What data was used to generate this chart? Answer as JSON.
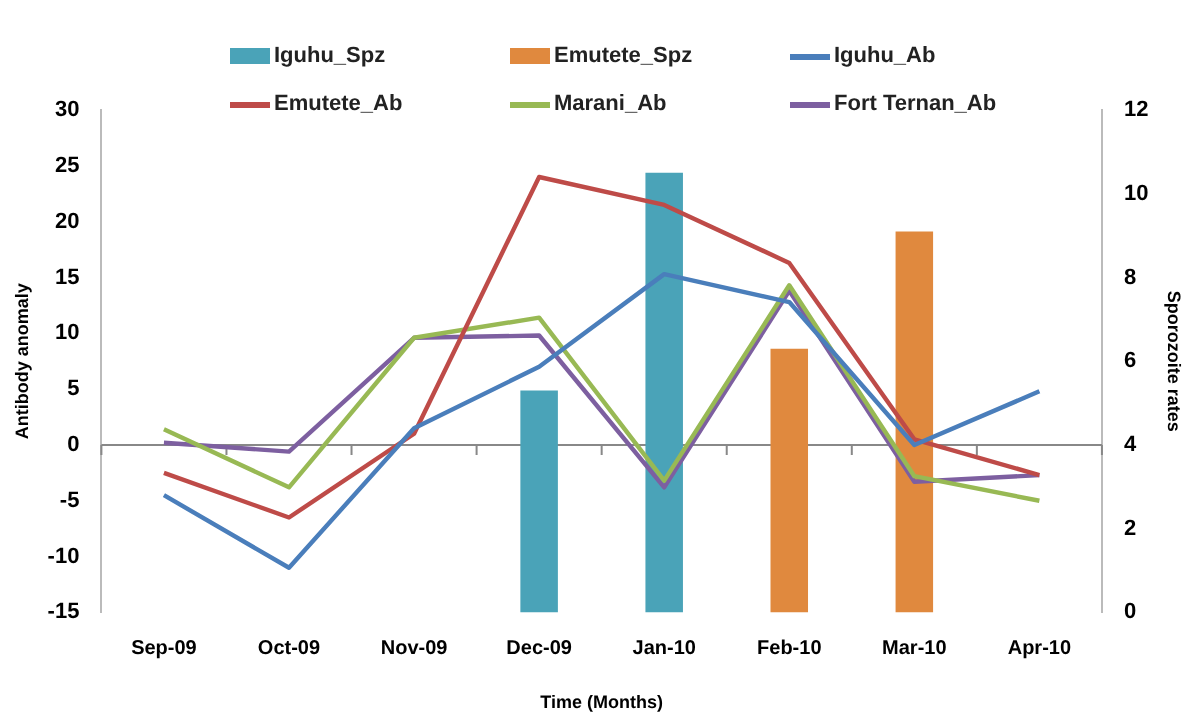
{
  "chart_data": {
    "type": "line",
    "xlabel": "Time (Months)",
    "ylabel": "Antibody anomaly",
    "y2label": "Sporozoite rates",
    "categories": [
      "Sep-09",
      "Oct-09",
      "Nov-09",
      "Dec-09",
      "Jan-10",
      "Feb-10",
      "Mar-10",
      "Apr-10"
    ],
    "series": [
      {
        "name": "Iguhu_Spz",
        "type": "bar",
        "axis": "y2",
        "color": "#4aa3b8",
        "values": [
          null,
          null,
          null,
          5.3,
          10.5,
          null,
          null,
          null
        ]
      },
      {
        "name": "Emutete_Spz",
        "type": "bar",
        "axis": "y2",
        "color": "#e0893e",
        "values": [
          null,
          null,
          null,
          null,
          null,
          6.3,
          9.1,
          null
        ]
      },
      {
        "name": "Iguhu_Ab",
        "color": "#4a7ebb",
        "values": [
          -4.5,
          -11,
          1.5,
          7,
          15.3,
          12.8,
          0,
          4.8
        ]
      },
      {
        "name": "Emutete_Ab",
        "color": "#be4b48",
        "values": [
          -2.5,
          -6.5,
          1,
          24,
          21.5,
          16.3,
          0.5,
          -2.7
        ]
      },
      {
        "name": "Marani_Ab",
        "color": "#98b954",
        "values": [
          1.4,
          -3.8,
          9.6,
          11.4,
          -3.2,
          14.3,
          -2.8,
          -5
        ]
      },
      {
        "name": "Fort Ternan_Ab",
        "color": "#7d5fa0",
        "values": [
          0.2,
          -0.6,
          9.6,
          9.8,
          -3.8,
          13.8,
          -3.3,
          -2.7
        ]
      }
    ],
    "ylim": [
      -15,
      30
    ],
    "yticks": [
      -15,
      -10,
      -5,
      0,
      5,
      10,
      15,
      20,
      25,
      30
    ],
    "y2lim": [
      0,
      12
    ],
    "y2ticks": [
      0,
      2,
      4,
      6,
      8,
      10,
      12
    ],
    "ref_lines": [
      {
        "axis": "y",
        "value": 0,
        "color": "#888888"
      }
    ],
    "legend": "top",
    "marker": "none"
  }
}
